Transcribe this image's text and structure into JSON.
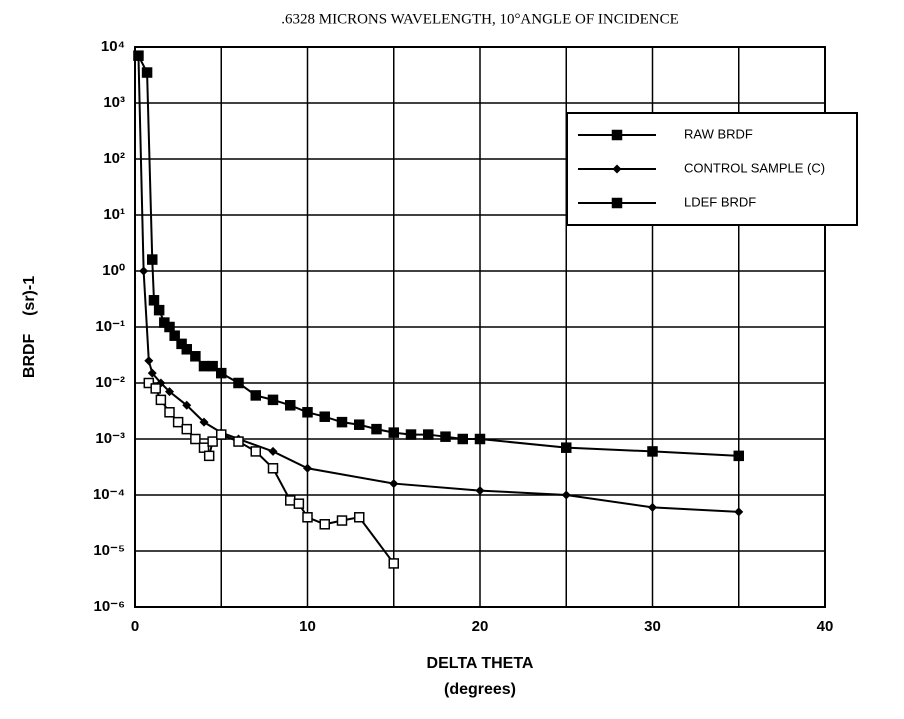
{
  "chart_data": {
    "type": "line",
    "title": ".6328 MICRONS WAVELENGTH, 10°ANGLE OF INCIDENCE",
    "x_label": "DELTA THETA",
    "x_label_sub": "(degrees)",
    "y_label": "BRDF    (sr)-1",
    "log_y": true,
    "grid": true,
    "xlim": [
      0,
      40
    ],
    "xticks": [
      0,
      10,
      20,
      30,
      40
    ],
    "xminor": [
      5,
      15,
      25,
      35
    ],
    "ylim": [
      1e-06,
      10000
    ],
    "yticks": [
      {
        "value": 1e-06,
        "label": "10⁻⁶"
      },
      {
        "value": 1e-05,
        "label": "10⁻⁵"
      },
      {
        "value": 0.0001,
        "label": "10⁻⁴"
      },
      {
        "value": 0.001,
        "label": "10⁻³"
      },
      {
        "value": 0.01,
        "label": "10⁻²"
      },
      {
        "value": 0.1,
        "label": "10⁻¹"
      },
      {
        "value": 1,
        "label": "10⁰"
      },
      {
        "value": 10,
        "label": "10¹"
      },
      {
        "value": 100,
        "label": "10²"
      },
      {
        "value": 1000,
        "label": "10³"
      },
      {
        "value": 10000,
        "label": "10⁴"
      }
    ],
    "series": [
      {
        "name": "RAW BRDF",
        "color": "#000",
        "marker": "square",
        "x": [
          0.2,
          0.7,
          1.0,
          1.1,
          1.4,
          1.7,
          2,
          2.3,
          2.7,
          3,
          3.5,
          4,
          4.5,
          5,
          6,
          7,
          8,
          9,
          10,
          11,
          12,
          13,
          14,
          15,
          16,
          17,
          18,
          19,
          20,
          25,
          30,
          35
        ],
        "values": [
          7000,
          3500,
          1.6,
          0.3,
          0.2,
          0.12,
          0.1,
          0.07,
          0.05,
          0.04,
          0.03,
          0.02,
          0.02,
          0.015,
          0.01,
          0.006,
          0.005,
          0.004,
          0.003,
          0.0025,
          0.002,
          0.0018,
          0.0015,
          0.0013,
          0.0012,
          0.0012,
          0.0011,
          0.001,
          0.001,
          0.0007,
          0.0006,
          0.0005
        ]
      },
      {
        "name": "CONTROL SAMPLE (C)",
        "color": "#000",
        "marker": "diamond",
        "x": [
          0.2,
          0.5,
          0.8,
          1,
          1.5,
          2,
          3,
          4,
          5,
          6,
          8,
          10,
          15,
          20,
          25,
          30,
          35
        ],
        "values": [
          7000,
          1,
          0.025,
          0.015,
          0.01,
          0.007,
          0.004,
          0.002,
          0.0013,
          0.001,
          0.0006,
          0.0003,
          0.00016,
          0.00012,
          0.0001,
          6e-05,
          5e-05
        ]
      },
      {
        "name": "LDEF BRDF",
        "color": "#000",
        "marker": "open-square",
        "x": [
          0.8,
          1.2,
          1.5,
          2,
          2.5,
          3,
          3.5,
          4,
          4.3,
          4.5,
          5,
          6,
          7,
          8,
          9,
          9.5,
          10,
          11,
          12,
          13,
          15
        ],
        "values": [
          0.01,
          0.008,
          0.005,
          0.003,
          0.002,
          0.0015,
          0.001,
          0.0007,
          0.0005,
          0.0009,
          0.0012,
          0.0009,
          0.0006,
          0.0003,
          8e-05,
          7e-05,
          4e-05,
          3e-05,
          3.5e-05,
          4e-05,
          6e-06
        ]
      }
    ]
  }
}
